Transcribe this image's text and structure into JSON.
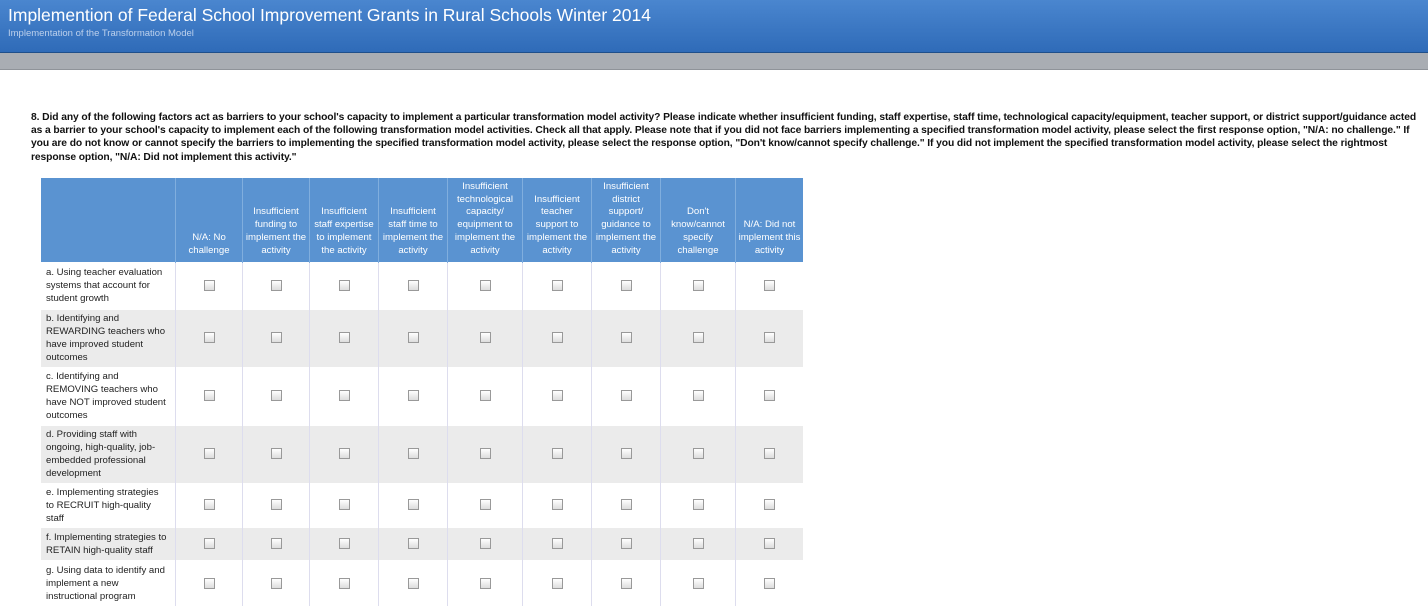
{
  "header": {
    "title": "Implemention of Federal School Improvement Grants in Rural Schools Winter 2014",
    "subtitle": "Implementation of the Transformation Model"
  },
  "question": "8. Did any of the following factors act as barriers to your school's capacity to implement a particular transformation model activity? Please indicate whether insufficient funding, staff expertise, staff time, technological capacity/equipment, teacher support, or district support/guidance acted as a barrier to your school's capacity to implement each of the following transformation model activities. Check all that apply. Please note that if you did not face barriers implementing a specified transformation model activity, please select the first response option, \"N/A: no challenge.\" If you are do not know or cannot specify the barriers to implementing the specified transformation model activity, please select the response option, \"Don't know/cannot specify challenge.\" If you did not implement the specified transformation model activity, please select the rightmost response option, \"N/A: Did not implement this activity.\"",
  "columns": [
    "N/A: No challenge",
    "Insufficient funding to implement the activity",
    "Insufficient staff expertise to implement the activity",
    "Insufficient staff time to implement the activity",
    "Insufficient technological capacity/ equipment to implement the activity",
    "Insufficient teacher support to implement the activity",
    "Insufficient district support/ guidance to implement the activity",
    "Don't know/cannot specify challenge",
    "N/A: Did not implement this activity"
  ],
  "rows": [
    "a. Using teacher evaluation systems that account for student growth",
    "b. Identifying and REWARDING teachers who have improved student outcomes",
    "c. Identifying and REMOVING teachers who have NOT improved student outcomes",
    "d. Providing staff with ongoing, high-quality, job-embedded professional development",
    "e. Implementing strategies to RECRUIT high-quality staff",
    "f. Implementing strategies to RETAIN high-quality staff",
    "g. Using data to identify and implement a new instructional program"
  ],
  "checked": []
}
